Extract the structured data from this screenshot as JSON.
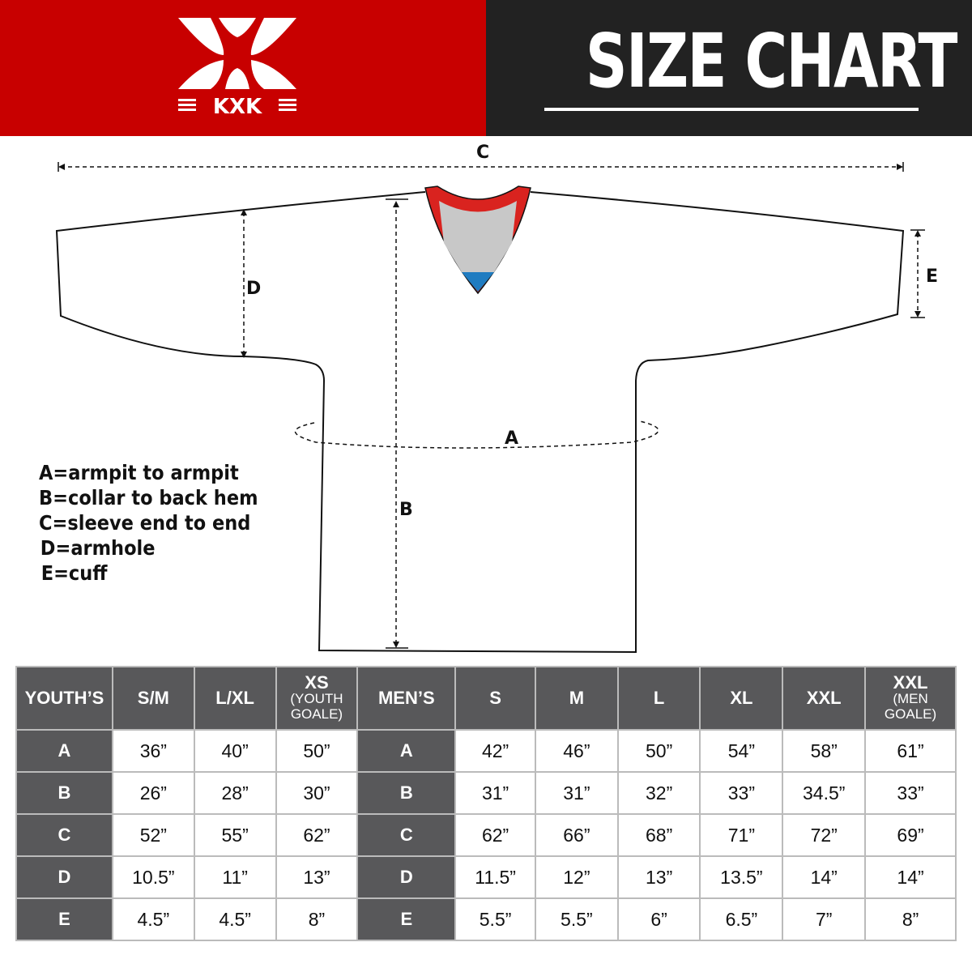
{
  "brand": {
    "logo_text": "KXK",
    "colors": {
      "red": "#c80000",
      "dark": "#222222",
      "table_header": "#58585a"
    }
  },
  "header": {
    "title": "SIZE CHART"
  },
  "diagram": {
    "labels": {
      "a": "A",
      "b": "B",
      "c": "C",
      "d": "D",
      "e": "E"
    }
  },
  "legend": [
    "A=armpit to armpit",
    "B=collar to back hem",
    "C=sleeve end to end",
    "D=armhole",
    "E=cuff"
  ],
  "table": {
    "youth": {
      "label": "YOUTH’S",
      "sizes": [
        {
          "main": "S/M",
          "sub": ""
        },
        {
          "main": "L/XL",
          "sub": ""
        },
        {
          "main": "XS",
          "sub": "(YOUTH GOALE)"
        }
      ]
    },
    "men": {
      "label": "MEN’S",
      "sizes": [
        {
          "main": "S",
          "sub": ""
        },
        {
          "main": "M",
          "sub": ""
        },
        {
          "main": "L",
          "sub": ""
        },
        {
          "main": "XL",
          "sub": ""
        },
        {
          "main": "XXL",
          "sub": ""
        },
        {
          "main": "XXL",
          "sub": "(MEN GOALE)"
        }
      ]
    },
    "rows": [
      {
        "key": "A",
        "youth": [
          "36”",
          "40”",
          "50”"
        ],
        "men": [
          "42”",
          "46”",
          "50”",
          "54”",
          "58”",
          "61”"
        ]
      },
      {
        "key": "B",
        "youth": [
          "26”",
          "28”",
          "30”"
        ],
        "men": [
          "31”",
          "31”",
          "32”",
          "33”",
          "34.5”",
          "33”"
        ]
      },
      {
        "key": "C",
        "youth": [
          "52”",
          "55”",
          "62”"
        ],
        "men": [
          "62”",
          "66”",
          "68”",
          "71”",
          "72”",
          "69”"
        ]
      },
      {
        "key": "D",
        "youth": [
          "10.5”",
          "11”",
          "13”"
        ],
        "men": [
          "11.5”",
          "12”",
          "13”",
          "13.5”",
          "14”",
          "14”"
        ]
      },
      {
        "key": "E",
        "youth": [
          "4.5”",
          "4.5”",
          "8”"
        ],
        "men": [
          "5.5”",
          "5.5”",
          "6”",
          "6.5”",
          "7”",
          "8”"
        ]
      }
    ]
  }
}
